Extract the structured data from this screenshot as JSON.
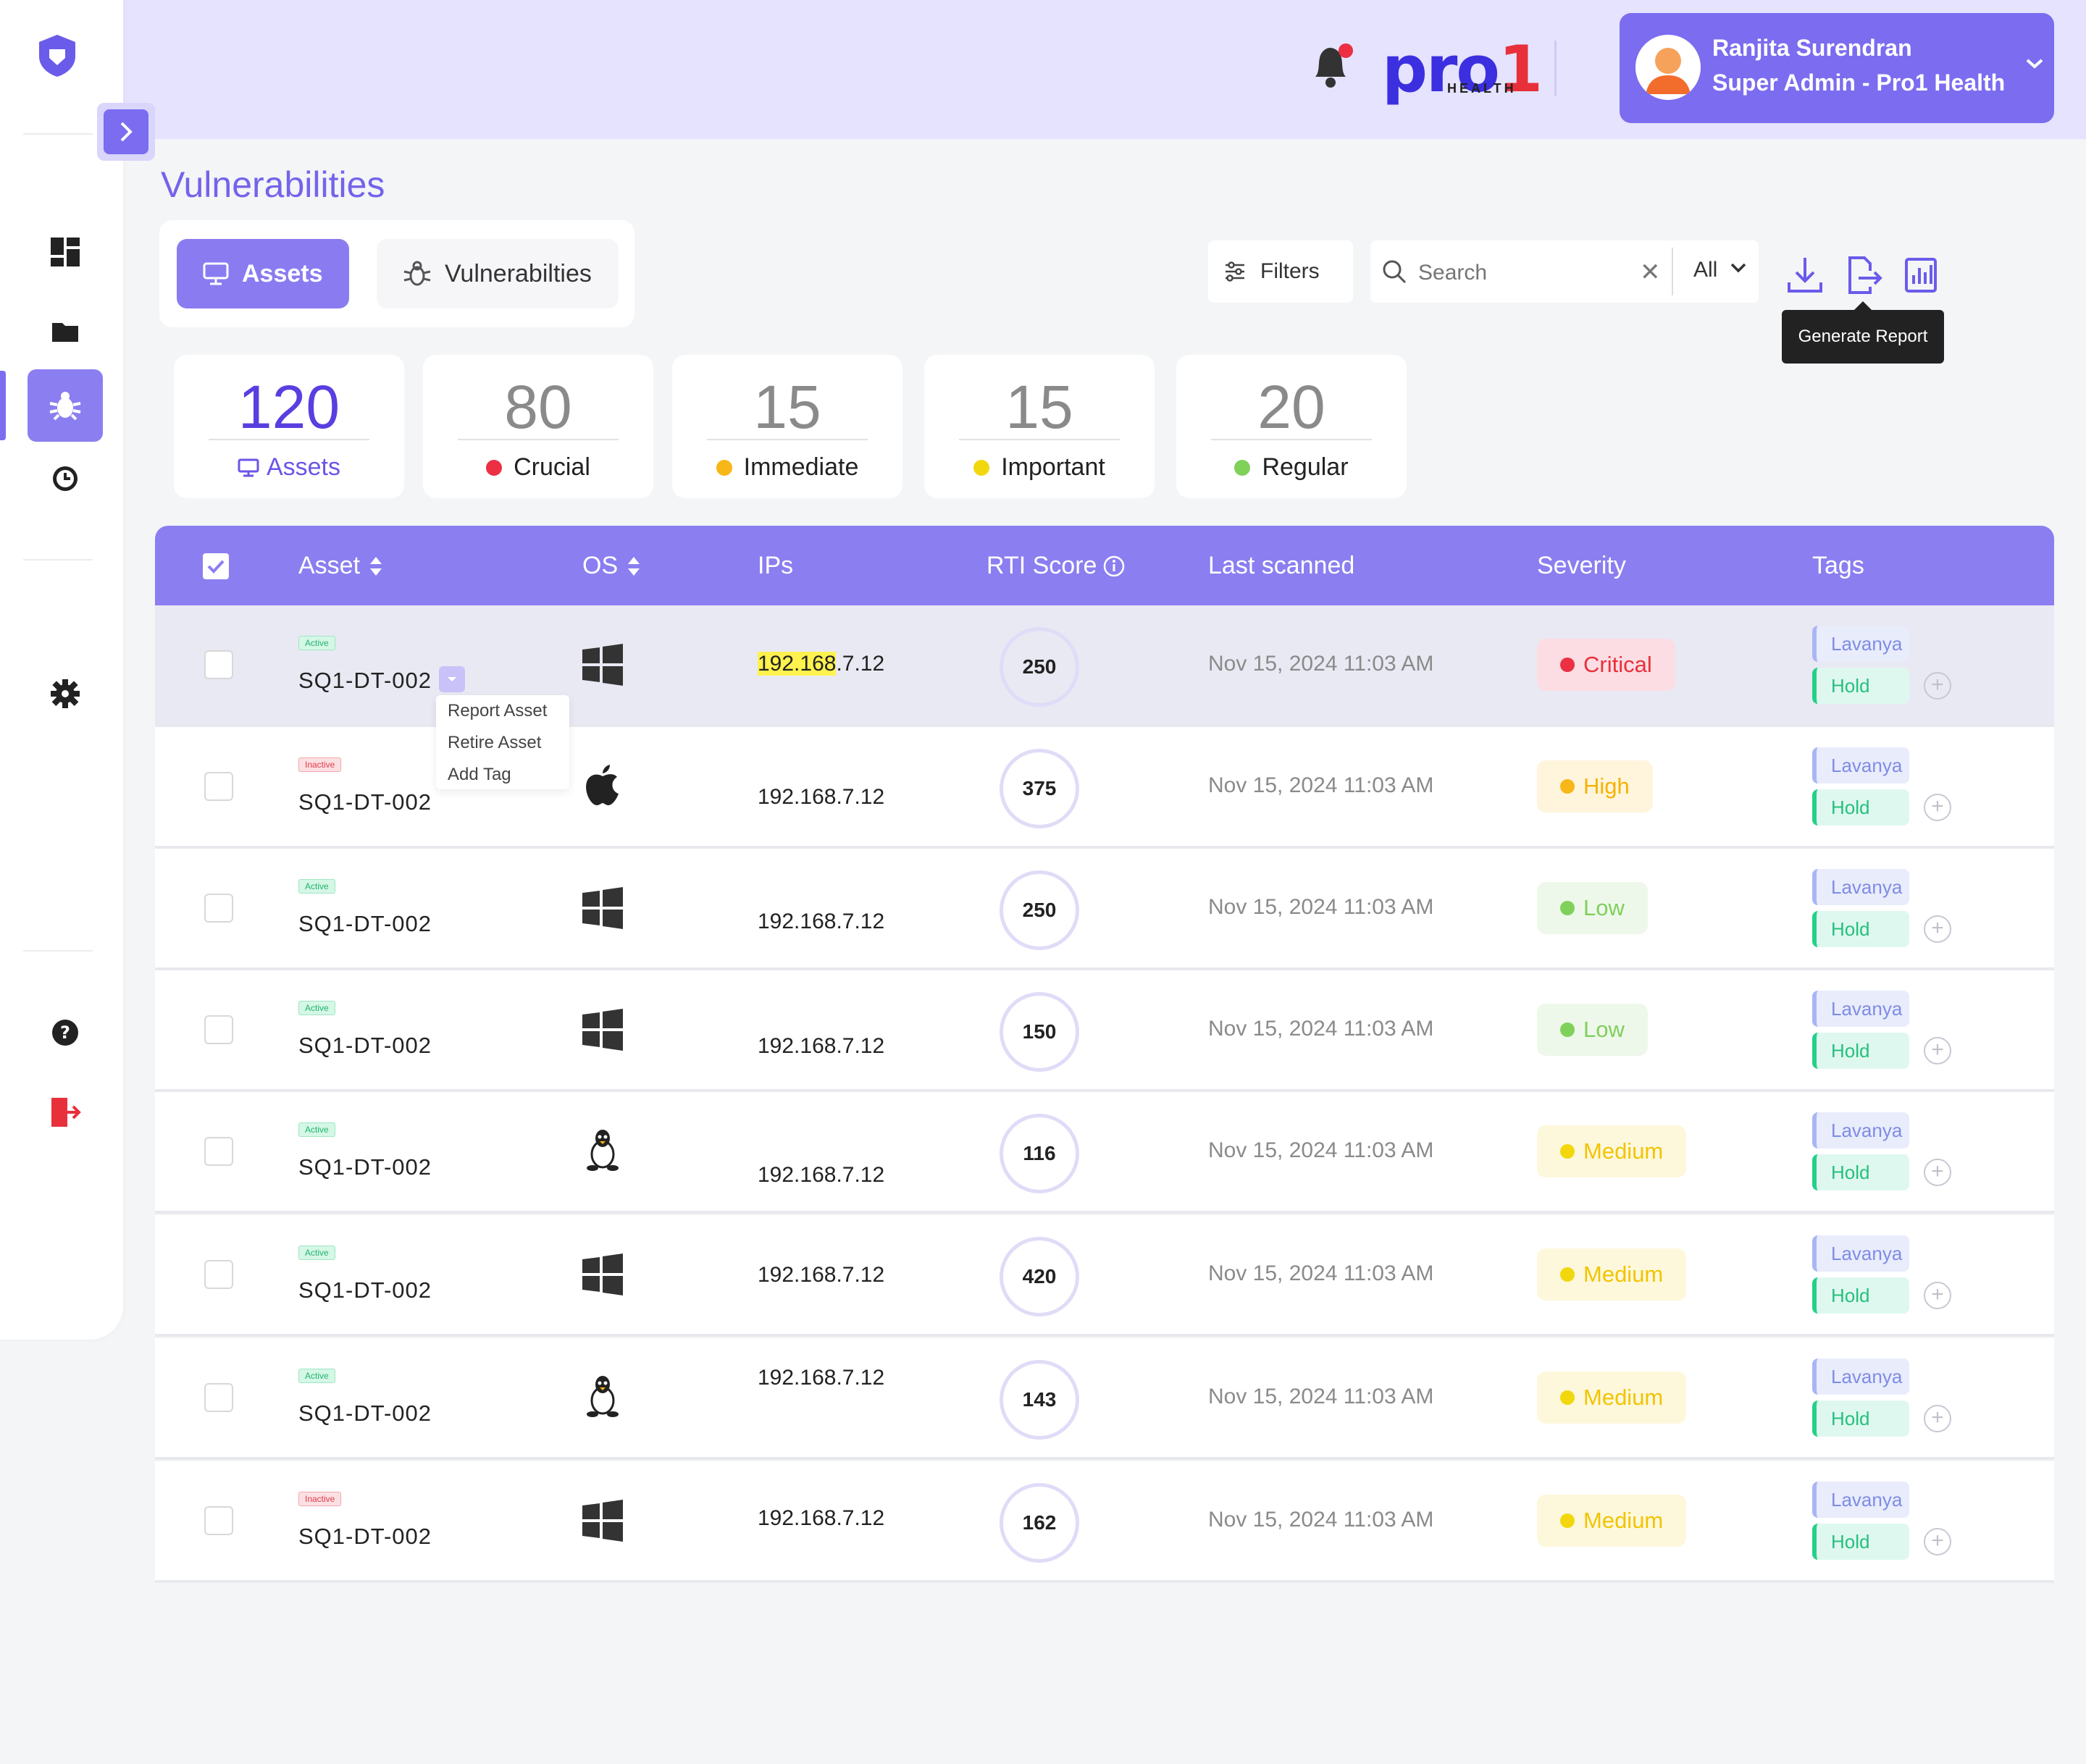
{
  "header": {
    "brand": {
      "name_main": "pro",
      "name_digit": "1",
      "sub": "HEALTH"
    },
    "user": {
      "name": "Ranjita Surendran",
      "role": "Super Admin - Pro1 Health"
    }
  },
  "page": {
    "title": "Vulnerabilities"
  },
  "tabs": [
    {
      "label": "Assets"
    },
    {
      "label": "Vulnerabilties"
    }
  ],
  "toolbar": {
    "filters_label": "Filters",
    "search_placeholder": "Search",
    "search_scope": "All",
    "tooltip": "Generate Report"
  },
  "stats": [
    {
      "value": "120",
      "label": "Assets"
    },
    {
      "value": "80",
      "label": "Crucial",
      "color": "#ec2f42"
    },
    {
      "value": "15",
      "label": "Immediate",
      "color": "#f7b718"
    },
    {
      "value": "15",
      "label": "Important",
      "color": "#f2d70e"
    },
    {
      "value": "20",
      "label": "Regular",
      "color": "#7fd15a"
    }
  ],
  "table": {
    "columns": {
      "asset": "Asset",
      "os": "OS",
      "ips": "IPs",
      "rti": "RTI Score",
      "last_scanned": "Last scanned",
      "severity": "Severity",
      "tags": "Tags"
    },
    "rows": [
      {
        "status": "Active",
        "asset": "SQ1-DT-002",
        "os": "windows",
        "ip_highlight": "192.168",
        "ip_rest": ".7.12",
        "score": "250",
        "scanned": "Nov 15, 2024 11:03 AM",
        "severity": "Critical",
        "tag1": "Lavanya",
        "tag2": "Hold"
      },
      {
        "status": "Inactive",
        "asset": "SQ1-DT-002",
        "os": "apple",
        "ip": "192.168.7.12",
        "score": "375",
        "scanned": "Nov 15, 2024 11:03 AM",
        "severity": "High",
        "tag1": "Lavanya",
        "tag2": "Hold"
      },
      {
        "status": "Active",
        "asset": "SQ1-DT-002",
        "os": "windows",
        "ip": "192.168.7.12",
        "score": "250",
        "scanned": "Nov 15, 2024 11:03 AM",
        "severity": "Low",
        "tag1": "Lavanya",
        "tag2": "Hold"
      },
      {
        "status": "Active",
        "asset": "SQ1-DT-002",
        "os": "windows",
        "ip": "192.168.7.12",
        "score": "150",
        "scanned": "Nov 15, 2024 11:03 AM",
        "severity": "Low",
        "tag1": "Lavanya",
        "tag2": "Hold"
      },
      {
        "status": "Active",
        "asset": "SQ1-DT-002",
        "os": "linux",
        "ip": "192.168.7.12",
        "score": "116",
        "scanned": "Nov 15, 2024 11:03 AM",
        "severity": "Medium",
        "tag1": "Lavanya",
        "tag2": "Hold"
      },
      {
        "status": "Active",
        "asset": "SQ1-DT-002",
        "os": "windows",
        "ip": "192.168.7.12",
        "score": "420",
        "scanned": "Nov 15, 2024 11:03 AM",
        "severity": "Medium",
        "tag1": "Lavanya",
        "tag2": "Hold"
      },
      {
        "status": "Active",
        "asset": "SQ1-DT-002",
        "os": "linux",
        "ip": "192.168.7.12",
        "score": "143",
        "scanned": "Nov 15, 2024 11:03 AM",
        "severity": "Medium",
        "tag1": "Lavanya",
        "tag2": "Hold"
      },
      {
        "status": "Inactive",
        "asset": "SQ1-DT-002",
        "os": "windows",
        "ip": "192.168.7.12",
        "score": "162",
        "scanned": "Nov 15, 2024 11:03 AM",
        "severity": "Medium",
        "tag1": "Lavanya",
        "tag2": "Hold"
      }
    ]
  },
  "row_menu": {
    "items": [
      "Report Asset",
      "Retire Asset",
      "Add Tag"
    ]
  },
  "colors": {
    "accent": "#7b6cf0",
    "critical": "#ec2f42",
    "high": "#f7b718",
    "medium": "#f2d70e",
    "low": "#7fd15a"
  }
}
